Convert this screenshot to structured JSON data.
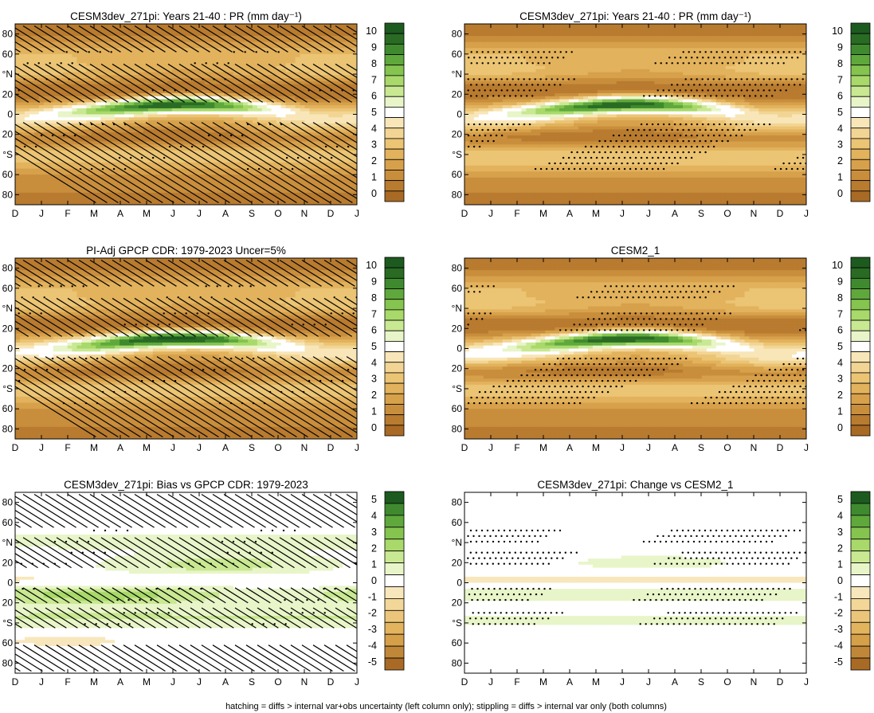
{
  "figure": {
    "footer": "hatching = diffs > internal var+obs uncertainty (left column only); stippling = diffs > internal var only (both columns)"
  },
  "colors": {
    "levels_main": [
      "#a86a24",
      "#b87b2f",
      "#c98e3c",
      "#d7a04b",
      "#e2b25c",
      "#ebc474",
      "#f2d594",
      "#f8e6b8",
      "#ffffff",
      "#e8f5c8",
      "#c9e892",
      "#a8d96a",
      "#84c44f",
      "#5fa83c",
      "#3f8a2e",
      "#2a6b24",
      "#1d5a1f"
    ],
    "levels_diff": [
      "#a86a24",
      "#c18739",
      "#d6a048",
      "#e2b45d",
      "#ebc67a",
      "#f3d799",
      "#f8e7bc",
      "#ffffff",
      "#e8f5c8",
      "#c9e892",
      "#a8d96a",
      "#84c44f",
      "#5fa83c",
      "#3f8a2e",
      "#1d5a1f"
    ]
  },
  "chart_data": [
    {
      "id": "p1",
      "type": "heatmap",
      "title": "CESM3dev_271pi: Years 21-40 : PR (mm day⁻¹)",
      "x_ticklabels": [
        "D",
        "J",
        "F",
        "M",
        "A",
        "M",
        "J",
        "J",
        "A",
        "S",
        "O",
        "N",
        "D",
        "J"
      ],
      "y_ticks": [
        80,
        60,
        40,
        20,
        0,
        -20,
        -40,
        -60,
        -80
      ],
      "y_ticklabels": [
        "80",
        "60",
        "°N",
        "20",
        "0",
        "20",
        "°S",
        "60",
        "80"
      ],
      "ylim": [
        -90,
        90
      ],
      "colorbar_ticks": [
        "10",
        "9",
        "8",
        "7",
        "6",
        "5",
        "4",
        "3",
        "2",
        "1",
        "0"
      ],
      "colorbar_range": [
        0,
        10
      ],
      "overlay": "hatching+stippling"
    },
    {
      "id": "p2",
      "type": "heatmap",
      "title": "CESM3dev_271pi: Years 21-40 : PR (mm day⁻¹)",
      "x_ticklabels": [
        "D",
        "J",
        "F",
        "M",
        "A",
        "M",
        "J",
        "J",
        "A",
        "S",
        "O",
        "N",
        "D",
        "J"
      ],
      "y_ticks": [
        80,
        60,
        40,
        20,
        0,
        -20,
        -40,
        -60,
        -80
      ],
      "y_ticklabels": [
        "80",
        "60",
        "°N",
        "20",
        "0",
        "20",
        "°S",
        "60",
        "80"
      ],
      "ylim": [
        -90,
        90
      ],
      "colorbar_ticks": [
        "10",
        "9",
        "8",
        "7",
        "6",
        "5",
        "4",
        "3",
        "2",
        "1",
        "0"
      ],
      "colorbar_range": [
        0,
        10
      ],
      "overlay": "stippling"
    },
    {
      "id": "p3",
      "type": "heatmap",
      "title": "PI-Adj GPCP CDR: 1979-2023 Uncer=5%",
      "x_ticklabels": [
        "D",
        "J",
        "F",
        "M",
        "A",
        "M",
        "J",
        "J",
        "A",
        "S",
        "O",
        "N",
        "D",
        "J"
      ],
      "y_ticks": [
        80,
        60,
        40,
        20,
        0,
        -20,
        -40,
        -60,
        -80
      ],
      "y_ticklabels": [
        "80",
        "60",
        "°N",
        "20",
        "0",
        "20",
        "°S",
        "60",
        "80"
      ],
      "ylim": [
        -90,
        90
      ],
      "colorbar_ticks": [
        "10",
        "9",
        "8",
        "7",
        "6",
        "5",
        "4",
        "3",
        "2",
        "1",
        "0"
      ],
      "colorbar_range": [
        0,
        10
      ],
      "overlay": "hatching+stippling"
    },
    {
      "id": "p4",
      "type": "heatmap",
      "title": "CESM2_1",
      "x_ticklabels": [
        "D",
        "J",
        "F",
        "M",
        "A",
        "M",
        "J",
        "J",
        "A",
        "S",
        "O",
        "N",
        "D",
        "J"
      ],
      "y_ticks": [
        80,
        60,
        40,
        20,
        0,
        -20,
        -40,
        -60,
        -80
      ],
      "y_ticklabels": [
        "80",
        "60",
        "°N",
        "20",
        "0",
        "20",
        "°S",
        "60",
        "80"
      ],
      "ylim": [
        -90,
        90
      ],
      "colorbar_ticks": [
        "10",
        "9",
        "8",
        "7",
        "6",
        "5",
        "4",
        "3",
        "2",
        "1",
        "0"
      ],
      "colorbar_range": [
        0,
        10
      ],
      "overlay": "stippling"
    },
    {
      "id": "p5",
      "type": "heatmap",
      "title": "CESM3dev_271pi: Bias vs GPCP CDR: 1979-2023",
      "x_ticklabels": [
        "D",
        "J",
        "F",
        "M",
        "A",
        "M",
        "J",
        "J",
        "A",
        "S",
        "O",
        "N",
        "D",
        "J"
      ],
      "y_ticks": [
        80,
        60,
        40,
        20,
        0,
        -20,
        -40,
        -60,
        -80
      ],
      "y_ticklabels": [
        "80",
        "60",
        "°N",
        "20",
        "0",
        "20",
        "°S",
        "60",
        "80"
      ],
      "ylim": [
        -90,
        90
      ],
      "colorbar_ticks": [
        "5",
        "4",
        "3",
        "2",
        "1",
        "0",
        "-1",
        "-2",
        "-3",
        "-4",
        "-5"
      ],
      "colorbar_range": [
        -5,
        5
      ],
      "overlay": "hatching+stippling"
    },
    {
      "id": "p6",
      "type": "heatmap",
      "title": "CESM3dev_271pi: Change vs CESM2_1",
      "x_ticklabels": [
        "D",
        "J",
        "F",
        "M",
        "A",
        "M",
        "J",
        "J",
        "A",
        "S",
        "O",
        "N",
        "D",
        "J"
      ],
      "y_ticks": [
        80,
        60,
        40,
        20,
        0,
        -20,
        -40,
        -60,
        -80
      ],
      "y_ticklabels": [
        "80",
        "60",
        "°N",
        "20",
        "0",
        "20",
        "°S",
        "60",
        "80"
      ],
      "ylim": [
        -90,
        90
      ],
      "colorbar_ticks": [
        "5",
        "4",
        "3",
        "2",
        "1",
        "0",
        "-1",
        "-2",
        "-3",
        "-4",
        "-5"
      ],
      "colorbar_range": [
        -5,
        5
      ],
      "overlay": "stippling"
    }
  ]
}
